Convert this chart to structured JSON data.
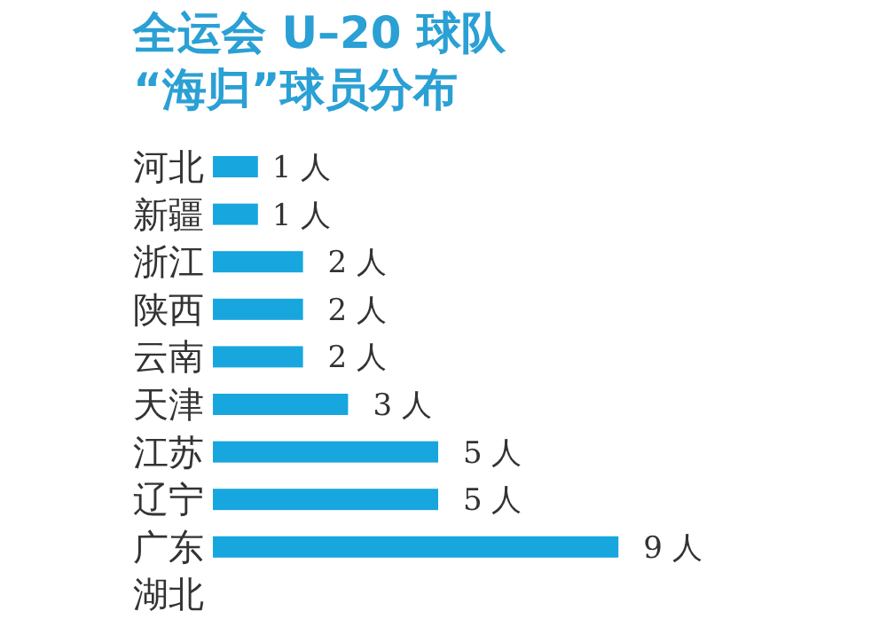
{
  "chart_data": {
    "type": "bar",
    "orientation": "horizontal",
    "title": "全运会 U–20 球队\n“海归”球员分布",
    "categories": [
      "河北",
      "新疆",
      "浙江",
      "陕西",
      "云南",
      "天津",
      "江苏",
      "辽宁",
      "广东",
      "湖北"
    ],
    "values": [
      1,
      1,
      2,
      2,
      2,
      3,
      5,
      5,
      9,
      null
    ],
    "value_labels": [
      "1 人",
      "1 人",
      "2 人",
      "2 人",
      "2 人",
      "3 人",
      "5 人",
      "5 人",
      "9 人",
      null
    ],
    "color": "#17a6de"
  }
}
